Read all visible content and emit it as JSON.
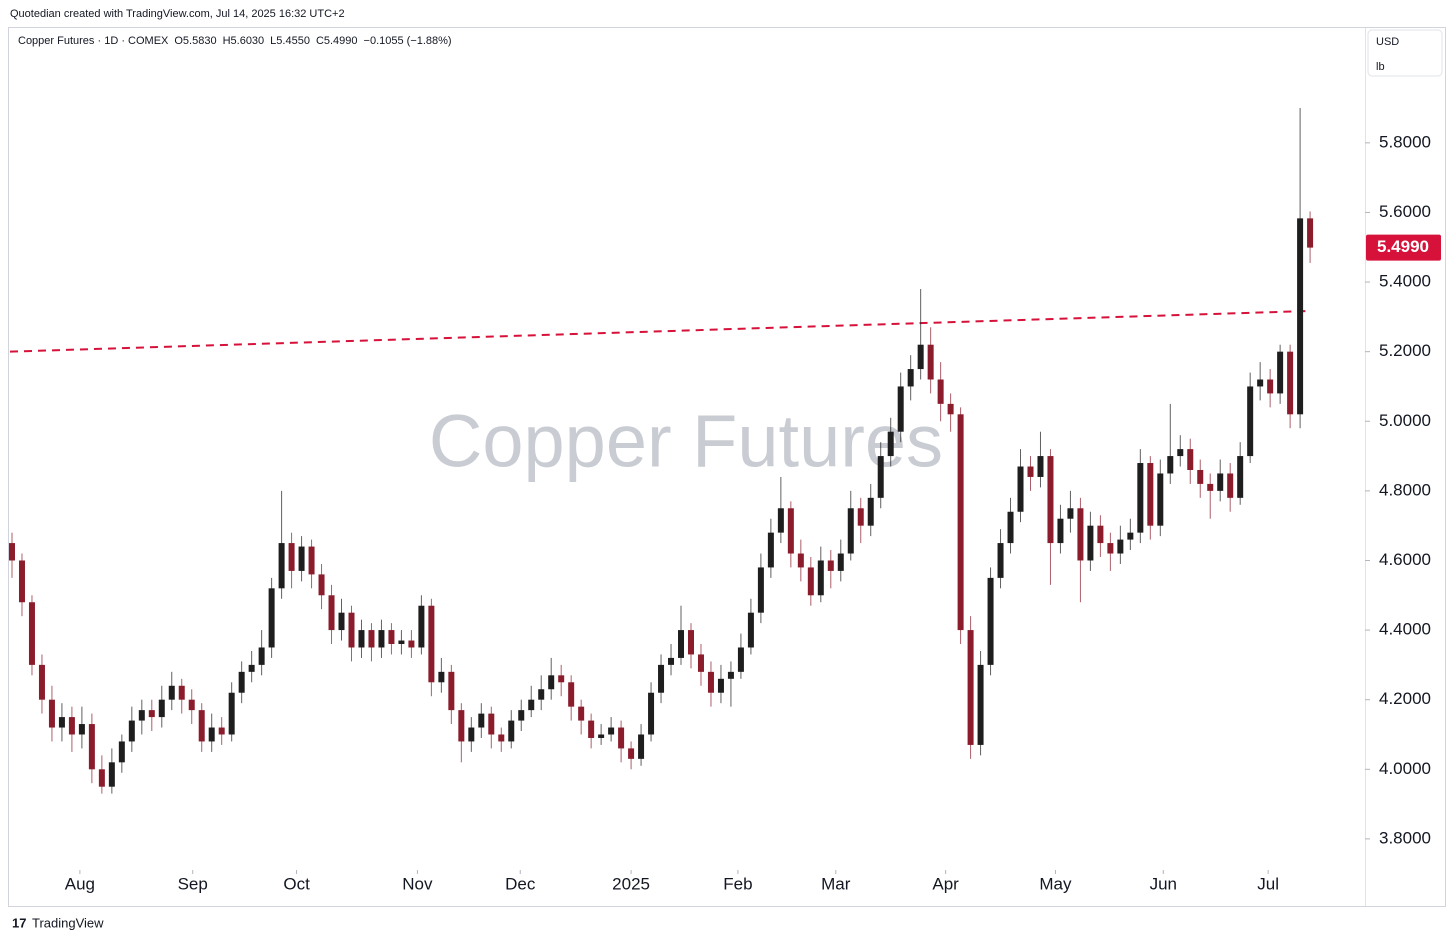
{
  "header": "Quotedian created with TradingView.com, Jul 14, 2025 16:32 UTC+2",
  "footer": "TradingView",
  "chart_data": {
    "type": "candlestick",
    "watermark": "Copper Futures",
    "symbol": "Copper Futures · 1D · COMEX",
    "ohlc_text": [
      "O5.5830",
      "H5.6030",
      "L5.4550",
      "C5.4990"
    ],
    "change_text": "−0.1055 (−1.88%)",
    "currency": "USD",
    "unit": "lb",
    "last_price_label": "5.4990",
    "up_color": "#1e1e1e",
    "down_color": "#8a1c2c",
    "last_price_color": "#d6113a",
    "trendline": {
      "x": [
        -0.2,
        130
      ],
      "y": [
        5.2,
        5.317
      ],
      "color": "#d6113a"
    },
    "xlim": [
      -0.2,
      135.5
    ],
    "xticks": [
      {
        "value": 6.8,
        "label": "Aug"
      },
      {
        "value": 18.1,
        "label": "Sep"
      },
      {
        "value": 28.5,
        "label": "Oct"
      },
      {
        "value": 40.6,
        "label": "Nov"
      },
      {
        "value": 50.9,
        "label": "Dec"
      },
      {
        "value": 62,
        "label": "2025"
      },
      {
        "value": 72.7,
        "label": "Feb"
      },
      {
        "value": 82.5,
        "label": "Mar"
      },
      {
        "value": 93.5,
        "label": "Apr"
      },
      {
        "value": 104.5,
        "label": "May"
      },
      {
        "value": 115.3,
        "label": "Jun"
      },
      {
        "value": 125.8,
        "label": "Jul"
      }
    ],
    "ylim": [
      3.725,
      6.13
    ],
    "yticks": [
      {
        "value": 3.8,
        "label": "3.8000"
      },
      {
        "value": 4.0,
        "label": "4.0000"
      },
      {
        "value": 4.2,
        "label": "4.2000"
      },
      {
        "value": 4.4,
        "label": "4.4000"
      },
      {
        "value": 4.6,
        "label": "4.6000"
      },
      {
        "value": 4.8,
        "label": "4.8000"
      },
      {
        "value": 5.0,
        "label": "5.0000"
      },
      {
        "value": 5.2,
        "label": "5.2000"
      },
      {
        "value": 5.4,
        "label": "5.4000"
      },
      {
        "value": 5.6,
        "label": "5.6000"
      },
      {
        "value": 5.8,
        "label": "5.8000"
      }
    ],
    "ohlc": [
      [
        4.65,
        4.68,
        4.55,
        4.6
      ],
      [
        4.6,
        4.62,
        4.44,
        4.48
      ],
      [
        4.48,
        4.5,
        4.27,
        4.3
      ],
      [
        4.3,
        4.33,
        4.16,
        4.2
      ],
      [
        4.2,
        4.24,
        4.08,
        4.12
      ],
      [
        4.12,
        4.19,
        4.08,
        4.15
      ],
      [
        4.15,
        4.18,
        4.05,
        4.1
      ],
      [
        4.1,
        4.18,
        4.06,
        4.13
      ],
      [
        4.13,
        4.16,
        3.96,
        4.0
      ],
      [
        4.0,
        4.04,
        3.93,
        3.95
      ],
      [
        3.95,
        4.06,
        3.93,
        4.02
      ],
      [
        4.02,
        4.1,
        3.99,
        4.08
      ],
      [
        4.08,
        4.18,
        4.05,
        4.14
      ],
      [
        4.14,
        4.2,
        4.1,
        4.17
      ],
      [
        4.17,
        4.2,
        4.11,
        4.15
      ],
      [
        4.15,
        4.24,
        4.12,
        4.2
      ],
      [
        4.2,
        4.28,
        4.17,
        4.24
      ],
      [
        4.24,
        4.26,
        4.16,
        4.2
      ],
      [
        4.2,
        4.23,
        4.13,
        4.17
      ],
      [
        4.17,
        4.19,
        4.05,
        4.08
      ],
      [
        4.08,
        4.16,
        4.05,
        4.12
      ],
      [
        4.12,
        4.15,
        4.07,
        4.1
      ],
      [
        4.1,
        4.25,
        4.08,
        4.22
      ],
      [
        4.22,
        4.31,
        4.19,
        4.28
      ],
      [
        4.28,
        4.34,
        4.25,
        4.3
      ],
      [
        4.3,
        4.4,
        4.27,
        4.35
      ],
      [
        4.35,
        4.55,
        4.32,
        4.52
      ],
      [
        4.52,
        4.8,
        4.49,
        4.65
      ],
      [
        4.65,
        4.68,
        4.52,
        4.57
      ],
      [
        4.57,
        4.67,
        4.54,
        4.64
      ],
      [
        4.64,
        4.66,
        4.52,
        4.56
      ],
      [
        4.56,
        4.59,
        4.46,
        4.5
      ],
      [
        4.5,
        4.53,
        4.36,
        4.4
      ],
      [
        4.4,
        4.49,
        4.37,
        4.45
      ],
      [
        4.45,
        4.47,
        4.31,
        4.35
      ],
      [
        4.35,
        4.43,
        4.32,
        4.4
      ],
      [
        4.4,
        4.42,
        4.31,
        4.35
      ],
      [
        4.35,
        4.43,
        4.32,
        4.4
      ],
      [
        4.4,
        4.42,
        4.33,
        4.36
      ],
      [
        4.36,
        4.4,
        4.33,
        4.37
      ],
      [
        4.37,
        4.4,
        4.32,
        4.35
      ],
      [
        4.35,
        4.5,
        4.33,
        4.47
      ],
      [
        4.47,
        4.49,
        4.21,
        4.25
      ],
      [
        4.25,
        4.32,
        4.22,
        4.28
      ],
      [
        4.28,
        4.3,
        4.13,
        4.17
      ],
      [
        4.17,
        4.19,
        4.02,
        4.08
      ],
      [
        4.08,
        4.15,
        4.05,
        4.12
      ],
      [
        4.12,
        4.19,
        4.09,
        4.16
      ],
      [
        4.16,
        4.18,
        4.06,
        4.1
      ],
      [
        4.1,
        4.12,
        4.05,
        4.08
      ],
      [
        4.08,
        4.17,
        4.06,
        4.14
      ],
      [
        4.14,
        4.2,
        4.11,
        4.17
      ],
      [
        4.17,
        4.24,
        4.15,
        4.2
      ],
      [
        4.2,
        4.27,
        4.17,
        4.23
      ],
      [
        4.23,
        4.32,
        4.2,
        4.27
      ],
      [
        4.27,
        4.3,
        4.21,
        4.25
      ],
      [
        4.25,
        4.27,
        4.14,
        4.18
      ],
      [
        4.18,
        4.2,
        4.1,
        4.14
      ],
      [
        4.14,
        4.16,
        4.06,
        4.09
      ],
      [
        4.09,
        4.13,
        4.07,
        4.1
      ],
      [
        4.1,
        4.15,
        4.08,
        4.12
      ],
      [
        4.12,
        4.14,
        4.02,
        4.06
      ],
      [
        4.06,
        4.08,
        4.0,
        4.03
      ],
      [
        4.03,
        4.13,
        4.01,
        4.1
      ],
      [
        4.1,
        4.25,
        4.08,
        4.22
      ],
      [
        4.22,
        4.33,
        4.19,
        4.3
      ],
      [
        4.3,
        4.36,
        4.27,
        4.32
      ],
      [
        4.32,
        4.47,
        4.3,
        4.4
      ],
      [
        4.4,
        4.42,
        4.29,
        4.33
      ],
      [
        4.33,
        4.36,
        4.24,
        4.28
      ],
      [
        4.28,
        4.31,
        4.18,
        4.22
      ],
      [
        4.22,
        4.3,
        4.19,
        4.26
      ],
      [
        4.26,
        4.31,
        4.18,
        4.28
      ],
      [
        4.28,
        4.39,
        4.26,
        4.35
      ],
      [
        4.35,
        4.49,
        4.33,
        4.45
      ],
      [
        4.45,
        4.62,
        4.42,
        4.58
      ],
      [
        4.58,
        4.72,
        4.55,
        4.68
      ],
      [
        4.68,
        4.84,
        4.65,
        4.75
      ],
      [
        4.75,
        4.77,
        4.58,
        4.62
      ],
      [
        4.62,
        4.66,
        4.54,
        4.58
      ],
      [
        4.58,
        4.61,
        4.47,
        4.5
      ],
      [
        4.5,
        4.64,
        4.48,
        4.6
      ],
      [
        4.6,
        4.63,
        4.52,
        4.57
      ],
      [
        4.57,
        4.66,
        4.54,
        4.62
      ],
      [
        4.62,
        4.8,
        4.6,
        4.75
      ],
      [
        4.75,
        4.78,
        4.65,
        4.7
      ],
      [
        4.7,
        4.82,
        4.67,
        4.78
      ],
      [
        4.78,
        4.94,
        4.75,
        4.9
      ],
      [
        4.9,
        5.01,
        4.87,
        4.97
      ],
      [
        4.97,
        5.14,
        4.94,
        5.1
      ],
      [
        5.1,
        5.19,
        5.06,
        5.15
      ],
      [
        5.15,
        5.38,
        5.12,
        5.22
      ],
      [
        5.22,
        5.27,
        5.08,
        5.12
      ],
      [
        5.12,
        5.17,
        5.0,
        5.05
      ],
      [
        5.05,
        5.08,
        4.97,
        5.02
      ],
      [
        5.02,
        5.04,
        4.36,
        4.4
      ],
      [
        4.4,
        4.44,
        4.03,
        4.07
      ],
      [
        4.07,
        4.34,
        4.04,
        4.3
      ],
      [
        4.3,
        4.58,
        4.27,
        4.55
      ],
      [
        4.55,
        4.69,
        4.52,
        4.65
      ],
      [
        4.65,
        4.78,
        4.62,
        4.74
      ],
      [
        4.74,
        4.92,
        4.71,
        4.87
      ],
      [
        4.87,
        4.9,
        4.8,
        4.84
      ],
      [
        4.84,
        4.97,
        4.81,
        4.9
      ],
      [
        4.9,
        4.92,
        4.53,
        4.65
      ],
      [
        4.65,
        4.76,
        4.62,
        4.72
      ],
      [
        4.72,
        4.8,
        4.68,
        4.75
      ],
      [
        4.75,
        4.78,
        4.48,
        4.6
      ],
      [
        4.6,
        4.74,
        4.57,
        4.7
      ],
      [
        4.7,
        4.73,
        4.61,
        4.65
      ],
      [
        4.65,
        4.68,
        4.57,
        4.62
      ],
      [
        4.62,
        4.7,
        4.59,
        4.66
      ],
      [
        4.66,
        4.72,
        4.63,
        4.68
      ],
      [
        4.68,
        4.92,
        4.65,
        4.88
      ],
      [
        4.88,
        4.9,
        4.66,
        4.7
      ],
      [
        4.7,
        4.89,
        4.67,
        4.85
      ],
      [
        4.85,
        5.05,
        4.82,
        4.9
      ],
      [
        4.9,
        4.96,
        4.87,
        4.92
      ],
      [
        4.92,
        4.95,
        4.82,
        4.86
      ],
      [
        4.86,
        4.89,
        4.78,
        4.82
      ],
      [
        4.82,
        4.85,
        4.72,
        4.8
      ],
      [
        4.8,
        4.89,
        4.77,
        4.85
      ],
      [
        4.85,
        4.88,
        4.74,
        4.78
      ],
      [
        4.78,
        4.94,
        4.76,
        4.9
      ],
      [
        4.9,
        5.14,
        4.88,
        5.1
      ],
      [
        5.1,
        5.17,
        5.06,
        5.12
      ],
      [
        5.12,
        5.15,
        5.04,
        5.08
      ],
      [
        5.08,
        5.22,
        5.05,
        5.2
      ],
      [
        5.2,
        5.22,
        4.98,
        5.02
      ],
      [
        5.02,
        5.9,
        4.98,
        5.583
      ],
      [
        5.583,
        5.603,
        5.455,
        5.499
      ]
    ]
  }
}
